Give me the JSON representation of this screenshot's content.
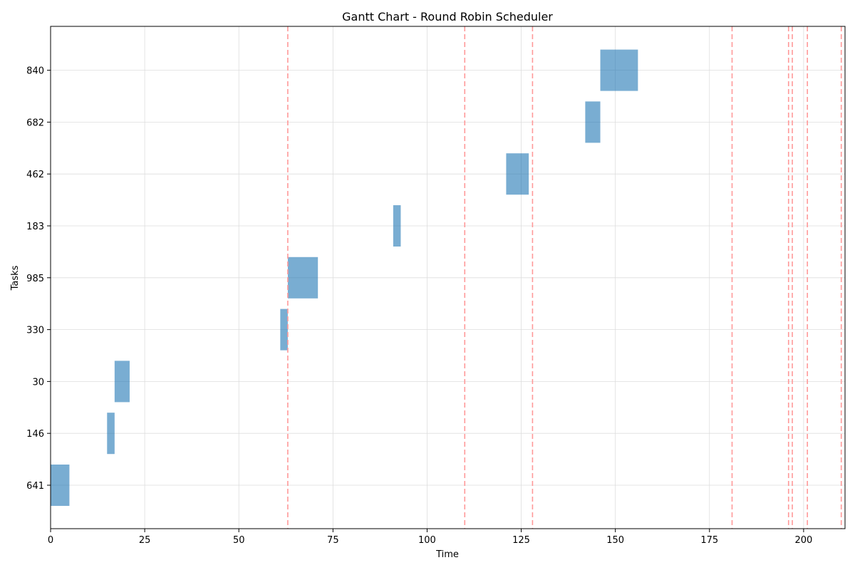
{
  "chart_data": {
    "type": "gantt",
    "title": "Gantt Chart - Round Robin Scheduler",
    "xlabel": "Time",
    "ylabel": "Tasks",
    "xlim": [
      0,
      211
    ],
    "x_ticks": [
      0,
      25,
      50,
      75,
      100,
      125,
      150,
      175,
      200
    ],
    "grid": true,
    "tasks": [
      {
        "label": "641",
        "start": 0,
        "end": 5
      },
      {
        "label": "146",
        "start": 15,
        "end": 17
      },
      {
        "label": "30",
        "start": 17,
        "end": 21
      },
      {
        "label": "330",
        "start": 61,
        "end": 63
      },
      {
        "label": "985",
        "start": 63,
        "end": 71
      },
      {
        "label": "183",
        "start": 91,
        "end": 93
      },
      {
        "label": "462",
        "start": 121,
        "end": 127
      },
      {
        "label": "682",
        "start": 142,
        "end": 146
      },
      {
        "label": "840",
        "start": 146,
        "end": 156
      }
    ],
    "markers": [
      63,
      110,
      128,
      181,
      196,
      197,
      201,
      210
    ],
    "colors": {
      "bar": "#1f77b4",
      "marker": "#ff9999",
      "grid": "#dddddd"
    }
  }
}
